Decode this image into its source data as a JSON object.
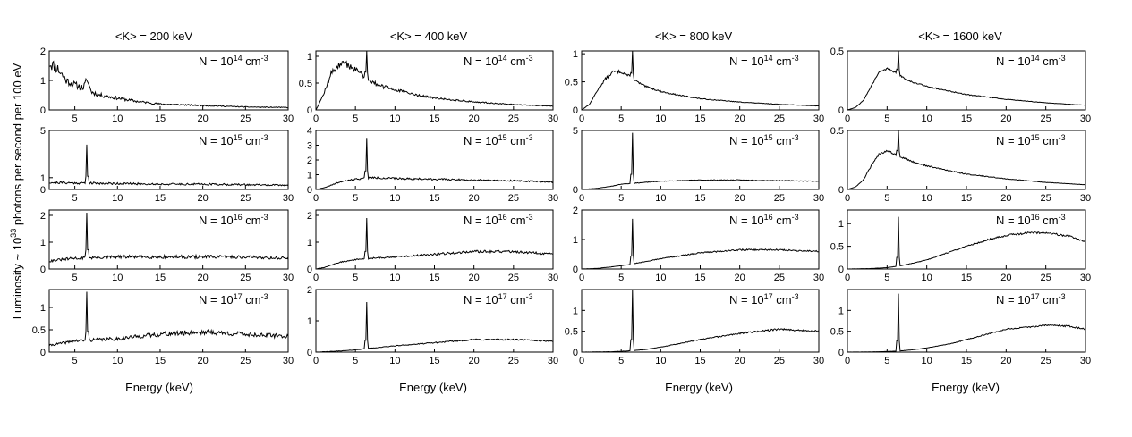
{
  "figure": {
    "ylabel": {
      "prefix": "Luminosity ~ 10",
      "sup": "33",
      "suffix": " photons per second per 100 eV"
    },
    "xlabel": "Energy (keV)",
    "row_labels": [
      {
        "prefix": "N = 10",
        "sup": "14",
        "suffix": " cm",
        "unit_sup": "-3"
      },
      {
        "prefix": "N = 10",
        "sup": "15",
        "suffix": " cm",
        "unit_sup": "-3"
      },
      {
        "prefix": "N = 10",
        "sup": "16",
        "suffix": " cm",
        "unit_sup": "-3"
      },
      {
        "prefix": "N = 10",
        "sup": "17",
        "suffix": " cm",
        "unit_sup": "-3"
      }
    ],
    "col_titles": [
      "<K> = 200 keV",
      "<K> = 400 keV",
      "<K> = 800 keV",
      "<K> = 1600 keV"
    ],
    "line_color": "#000000"
  },
  "chart_data": [
    {
      "type": "line",
      "row": 0,
      "col": 0,
      "title": "<K> = 200 keV",
      "label": "N = 10^14 cm^-3",
      "xlim": [
        2,
        30
      ],
      "ylim": [
        0,
        2
      ],
      "xticks": [
        5,
        10,
        15,
        20,
        25,
        30
      ],
      "yticks": [
        0,
        1,
        2
      ],
      "x": [
        2,
        3,
        4,
        5,
        6,
        6.4,
        7,
        8,
        10,
        12,
        15,
        20,
        25,
        30
      ],
      "y": [
        1.6,
        1.4,
        1.0,
        0.85,
        0.75,
        1.0,
        0.6,
        0.5,
        0.4,
        0.3,
        0.2,
        0.15,
        0.1,
        0.08
      ],
      "peak": {
        "x": 6.4,
        "y": 1.0
      },
      "noise": 0.14,
      "seed": 11
    },
    {
      "type": "line",
      "row": 0,
      "col": 1,
      "title": "<K> = 400 keV",
      "label": "N = 10^14 cm^-3",
      "xlim": [
        0,
        30
      ],
      "ylim": [
        0,
        1.1
      ],
      "xticks": [
        0,
        5,
        10,
        15,
        20,
        25,
        30
      ],
      "yticks": [
        0,
        0.5,
        1
      ],
      "x": [
        0,
        1,
        2,
        3,
        4,
        5,
        6,
        7,
        8,
        10,
        12,
        15,
        20,
        25,
        30
      ],
      "y": [
        0,
        0.3,
        0.7,
        0.85,
        0.85,
        0.75,
        0.65,
        0.55,
        0.45,
        0.38,
        0.3,
        0.22,
        0.15,
        0.1,
        0.07
      ],
      "peak": {
        "x": 6.4,
        "y": 1.1
      },
      "noise": 0.08,
      "seed": 12
    },
    {
      "type": "line",
      "row": 0,
      "col": 2,
      "title": "<K> = 800 keV",
      "label": "N = 10^14 cm^-3",
      "xlim": [
        0,
        30
      ],
      "ylim": [
        0,
        1.05
      ],
      "xticks": [
        0,
        5,
        10,
        15,
        20,
        25,
        30
      ],
      "yticks": [
        0,
        0.5,
        1
      ],
      "x": [
        0,
        1,
        2,
        3,
        4,
        5,
        6,
        7,
        8,
        10,
        12,
        15,
        20,
        25,
        30
      ],
      "y": [
        0,
        0.1,
        0.35,
        0.55,
        0.68,
        0.68,
        0.6,
        0.5,
        0.42,
        0.33,
        0.27,
        0.2,
        0.14,
        0.1,
        0.07
      ],
      "peak": {
        "x": 6.4,
        "y": 1.05
      },
      "noise": 0.04,
      "seed": 13
    },
    {
      "type": "line",
      "row": 0,
      "col": 3,
      "title": "<K> = 1600 keV",
      "label": "N = 10^14 cm^-3",
      "xlim": [
        0,
        30
      ],
      "ylim": [
        0,
        0.5
      ],
      "xticks": [
        0,
        5,
        10,
        15,
        20,
        25,
        30
      ],
      "yticks": [
        0,
        0.5
      ],
      "x": [
        0,
        1,
        2,
        3,
        4,
        5,
        6,
        7,
        8,
        10,
        12,
        15,
        20,
        25,
        30
      ],
      "y": [
        0,
        0.02,
        0.08,
        0.2,
        0.32,
        0.35,
        0.32,
        0.28,
        0.24,
        0.2,
        0.17,
        0.13,
        0.09,
        0.06,
        0.04
      ],
      "peak": {
        "x": 6.4,
        "y": 0.5
      },
      "noise": 0.03,
      "seed": 14
    },
    {
      "type": "line",
      "row": 1,
      "col": 0,
      "title": "<K> = 200 keV",
      "label": "N = 10^15 cm^-3",
      "xlim": [
        2,
        30
      ],
      "ylim": [
        0,
        5
      ],
      "xticks": [
        5,
        10,
        15,
        20,
        25,
        30
      ],
      "yticks": [
        0,
        1,
        5
      ],
      "x": [
        2,
        5,
        10,
        15,
        20,
        25,
        30
      ],
      "y": [
        0.6,
        0.55,
        0.5,
        0.45,
        0.45,
        0.4,
        0.35
      ],
      "peak": {
        "x": 6.4,
        "y": 3.8
      },
      "noise": 0.18,
      "seed": 21
    },
    {
      "type": "line",
      "row": 1,
      "col": 1,
      "title": "<K> = 400 keV",
      "label": "N = 10^15 cm^-3",
      "xlim": [
        0,
        30
      ],
      "ylim": [
        0,
        4
      ],
      "xticks": [
        0,
        5,
        10,
        15,
        20,
        25,
        30
      ],
      "yticks": [
        0,
        1,
        2,
        3,
        4
      ],
      "x": [
        0,
        1,
        2,
        3,
        5,
        7,
        10,
        15,
        20,
        25,
        30
      ],
      "y": [
        0,
        0.1,
        0.3,
        0.5,
        0.7,
        0.8,
        0.75,
        0.7,
        0.65,
        0.6,
        0.5
      ],
      "peak": {
        "x": 6.4,
        "y": 3.5
      },
      "noise": 0.08,
      "seed": 22
    },
    {
      "type": "line",
      "row": 1,
      "col": 2,
      "title": "<K> = 800 keV",
      "label": "N = 10^15 cm^-3",
      "xlim": [
        0,
        30
      ],
      "ylim": [
        0,
        5
      ],
      "xticks": [
        0,
        5,
        10,
        15,
        20,
        25,
        30
      ],
      "yticks": [
        0,
        5
      ],
      "x": [
        0,
        2,
        4,
        5,
        7,
        10,
        15,
        20,
        25,
        30
      ],
      "y": [
        0,
        0.1,
        0.3,
        0.45,
        0.55,
        0.7,
        0.8,
        0.8,
        0.75,
        0.7
      ],
      "peak": {
        "x": 6.4,
        "y": 4.8
      },
      "noise": 0.04,
      "seed": 23
    },
    {
      "type": "line",
      "row": 1,
      "col": 3,
      "title": "<K> = 1600 keV",
      "label": "N = 10^15 cm^-3",
      "xlim": [
        0,
        30
      ],
      "ylim": [
        0,
        0.5
      ],
      "xticks": [
        0,
        5,
        10,
        15,
        20,
        25,
        30
      ],
      "yticks": [
        0,
        0.5
      ],
      "x": [
        0,
        1,
        2,
        3,
        4,
        5,
        6,
        7,
        8,
        10,
        12,
        15,
        20,
        25,
        30
      ],
      "y": [
        0,
        0.02,
        0.08,
        0.2,
        0.3,
        0.33,
        0.3,
        0.27,
        0.24,
        0.2,
        0.17,
        0.13,
        0.09,
        0.06,
        0.04
      ],
      "peak": {
        "x": 6.4,
        "y": 0.5
      },
      "noise": 0.03,
      "seed": 24
    },
    {
      "type": "line",
      "row": 2,
      "col": 0,
      "title": "<K> = 200 keV",
      "label": "N = 10^16 cm^-3",
      "xlim": [
        2,
        30
      ],
      "ylim": [
        0,
        2.2
      ],
      "xticks": [
        5,
        10,
        15,
        20,
        25,
        30
      ],
      "yticks": [
        0,
        1,
        2
      ],
      "x": [
        2,
        5,
        10,
        15,
        20,
        25,
        30
      ],
      "y": [
        0.3,
        0.4,
        0.45,
        0.45,
        0.45,
        0.45,
        0.4
      ],
      "peak": {
        "x": 6.4,
        "y": 2.1
      },
      "noise": 0.14,
      "seed": 31
    },
    {
      "type": "line",
      "row": 2,
      "col": 1,
      "title": "<K> = 400 keV",
      "label": "N = 10^16 cm^-3",
      "xlim": [
        0,
        30
      ],
      "ylim": [
        0,
        2.2
      ],
      "xticks": [
        0,
        5,
        10,
        15,
        20,
        25,
        30
      ],
      "yticks": [
        0,
        1,
        2
      ],
      "x": [
        0,
        1,
        2,
        3,
        5,
        7,
        10,
        15,
        20,
        25,
        30
      ],
      "y": [
        0,
        0.05,
        0.15,
        0.25,
        0.35,
        0.4,
        0.45,
        0.55,
        0.65,
        0.65,
        0.55
      ],
      "peak": {
        "x": 6.4,
        "y": 1.9
      },
      "noise": 0.07,
      "seed": 32
    },
    {
      "type": "line",
      "row": 2,
      "col": 2,
      "title": "<K> = 800 keV",
      "label": "N = 10^16 cm^-3",
      "xlim": [
        0,
        30
      ],
      "ylim": [
        0,
        2
      ],
      "xticks": [
        0,
        5,
        10,
        15,
        20,
        25,
        30
      ],
      "yticks": [
        0,
        1,
        2
      ],
      "x": [
        0,
        2,
        4,
        6,
        8,
        10,
        15,
        20,
        25,
        30
      ],
      "y": [
        0,
        0.02,
        0.08,
        0.15,
        0.25,
        0.35,
        0.55,
        0.65,
        0.65,
        0.6
      ],
      "peak": {
        "x": 6.4,
        "y": 1.7
      },
      "noise": 0.04,
      "seed": 33
    },
    {
      "type": "line",
      "row": 2,
      "col": 3,
      "title": "<K> = 1600 keV",
      "label": "N = 10^16 cm^-3",
      "xlim": [
        0,
        30
      ],
      "ylim": [
        0,
        1.3
      ],
      "xticks": [
        0,
        5,
        10,
        15,
        20,
        25,
        30
      ],
      "yticks": [
        0,
        0.5,
        1
      ],
      "x": [
        0,
        3,
        5,
        7,
        10,
        13,
        15,
        18,
        20,
        23,
        25,
        28,
        30
      ],
      "y": [
        0,
        0.01,
        0.03,
        0.08,
        0.2,
        0.38,
        0.5,
        0.66,
        0.74,
        0.8,
        0.8,
        0.72,
        0.6
      ],
      "peak": {
        "x": 6.4,
        "y": 1.15
      },
      "noise": 0.03,
      "seed": 34
    },
    {
      "type": "line",
      "row": 3,
      "col": 0,
      "title": "<K> = 200 keV",
      "label": "N = 10^17 cm^-3",
      "xlim": [
        2,
        30
      ],
      "ylim": [
        0,
        1.4
      ],
      "xticks": [
        5,
        10,
        15,
        20,
        25,
        30
      ],
      "yticks": [
        0,
        0.5,
        1
      ],
      "x": [
        2,
        5,
        10,
        15,
        20,
        25,
        30
      ],
      "y": [
        0.15,
        0.25,
        0.3,
        0.4,
        0.45,
        0.4,
        0.35
      ],
      "peak": {
        "x": 6.4,
        "y": 1.35
      },
      "noise": 0.13,
      "seed": 41
    },
    {
      "type": "line",
      "row": 3,
      "col": 1,
      "title": "<K> = 400 keV",
      "label": "N = 10^17 cm^-3",
      "xlim": [
        0,
        30
      ],
      "ylim": [
        0,
        2
      ],
      "xticks": [
        0,
        5,
        10,
        15,
        20,
        25,
        30
      ],
      "yticks": [
        0,
        1,
        2
      ],
      "x": [
        0,
        2,
        4,
        6,
        8,
        10,
        15,
        20,
        25,
        30
      ],
      "y": [
        0,
        0.02,
        0.05,
        0.1,
        0.15,
        0.2,
        0.3,
        0.4,
        0.4,
        0.35
      ],
      "peak": {
        "x": 6.4,
        "y": 1.6
      },
      "noise": 0.06,
      "seed": 42
    },
    {
      "type": "line",
      "row": 3,
      "col": 2,
      "title": "<K> = 800 keV",
      "label": "N = 10^17 cm^-3",
      "xlim": [
        0,
        30
      ],
      "ylim": [
        0,
        1.5
      ],
      "xticks": [
        0,
        5,
        10,
        15,
        20,
        25,
        30
      ],
      "yticks": [
        0,
        0.5,
        1
      ],
      "x": [
        0,
        4,
        6,
        8,
        10,
        15,
        20,
        25,
        30
      ],
      "y": [
        0,
        0.01,
        0.03,
        0.06,
        0.12,
        0.3,
        0.45,
        0.55,
        0.5
      ],
      "peak": {
        "x": 6.4,
        "y": 1.5
      },
      "noise": 0.04,
      "seed": 43
    },
    {
      "type": "line",
      "row": 3,
      "col": 3,
      "title": "<K> = 1600 keV",
      "label": "N = 10^17 cm^-3",
      "xlim": [
        0,
        30
      ],
      "ylim": [
        0,
        1.5
      ],
      "xticks": [
        0,
        5,
        10,
        15,
        20,
        25,
        30
      ],
      "yticks": [
        0,
        0.5,
        1
      ],
      "x": [
        0,
        3,
        6,
        8,
        10,
        13,
        15,
        18,
        20,
        23,
        25,
        28,
        30
      ],
      "y": [
        0,
        0.005,
        0.02,
        0.05,
        0.1,
        0.2,
        0.3,
        0.45,
        0.55,
        0.6,
        0.65,
        0.62,
        0.55
      ],
      "peak": {
        "x": 6.4,
        "y": 1.4
      },
      "noise": 0.03,
      "seed": 44
    }
  ]
}
